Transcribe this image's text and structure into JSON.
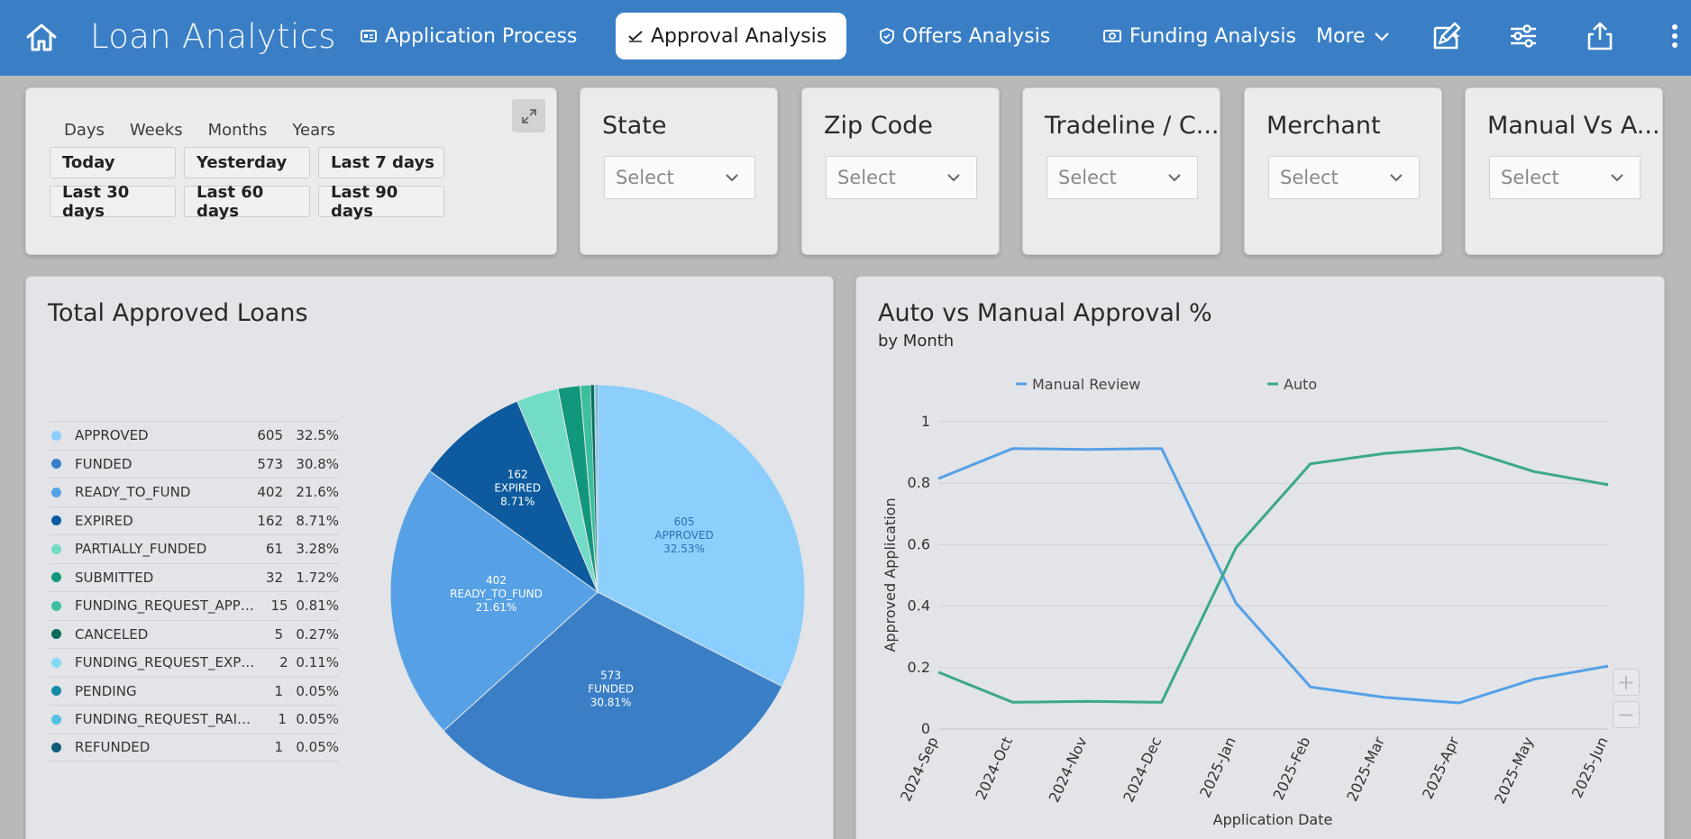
{
  "app": {
    "title": "Loan Analytics"
  },
  "nav": {
    "items": [
      {
        "label": "Application Process",
        "icon": "id-card-icon"
      },
      {
        "label": "Approval Analysis",
        "icon": "chart-check-icon",
        "active": true
      },
      {
        "label": "Offers Analysis",
        "icon": "shield-icon"
      },
      {
        "label": "Funding Analysis",
        "icon": "money-icon"
      }
    ],
    "more_label": "More"
  },
  "date_filter": {
    "tabs": [
      "Days",
      "Weeks",
      "Months",
      "Years"
    ],
    "presets": [
      "Today",
      "Yesterday",
      "Last 7 days",
      "Last 30 days",
      "Last 60 days",
      "Last 90 days"
    ]
  },
  "filters": [
    {
      "title": "State",
      "placeholder": "Select"
    },
    {
      "title": "Zip Code",
      "placeholder": "Select"
    },
    {
      "title": "Tradeline / C...",
      "placeholder": "Select"
    },
    {
      "title": "Merchant",
      "placeholder": "Select"
    },
    {
      "title": "Manual Vs A...",
      "placeholder": "Select"
    }
  ],
  "pie_panel": {
    "title": "Total Approved Loans",
    "legend": [
      {
        "name": "APPROVED",
        "count": "605",
        "pct": "32.5%",
        "color": "#8ccffc"
      },
      {
        "name": "FUNDED",
        "count": "573",
        "pct": "30.8%",
        "color": "#3a7fc6"
      },
      {
        "name": "READY_TO_FUND",
        "count": "402",
        "pct": "21.6%",
        "color": "#56a0e6"
      },
      {
        "name": "EXPIRED",
        "count": "162",
        "pct": "8.71%",
        "color": "#0d5b9e"
      },
      {
        "name": "PARTIALLY_FUNDED",
        "count": "61",
        "pct": "3.28%",
        "color": "#72dcc6"
      },
      {
        "name": "SUBMITTED",
        "count": "32",
        "pct": "1.72%",
        "color": "#10977c"
      },
      {
        "name": "FUNDING_REQUEST_APPRO...",
        "count": "15",
        "pct": "0.81%",
        "color": "#3cbf9f"
      },
      {
        "name": "CANCELED",
        "count": "5",
        "pct": "0.27%",
        "color": "#0b6b5c"
      },
      {
        "name": "FUNDING_REQUEST_EXPIRED",
        "count": "2",
        "pct": "0.11%",
        "color": "#86d8f7"
      },
      {
        "name": "PENDING",
        "count": "1",
        "pct": "0.05%",
        "color": "#138ba6"
      },
      {
        "name": "FUNDING_REQUEST_RAISED",
        "count": "1",
        "pct": "0.05%",
        "color": "#4fc1e6"
      },
      {
        "name": "REFUNDED",
        "count": "1",
        "pct": "0.05%",
        "color": "#0f5e78"
      }
    ]
  },
  "line_panel": {
    "title": "Auto vs Manual Approval %",
    "subtitle": "by Month"
  },
  "chart_data": [
    {
      "type": "pie",
      "title": "Total Approved Loans",
      "slices": [
        {
          "label": "APPROVED",
          "value": 605,
          "pct": "32.53%",
          "color": "#8ccffc",
          "text_color": "#2a6fb6",
          "show_label": true
        },
        {
          "label": "FUNDED",
          "value": 573,
          "pct": "30.81%",
          "color": "#3a7fc6",
          "text_color": "#ffffff",
          "show_label": true
        },
        {
          "label": "READY_TO_FUND",
          "value": 402,
          "pct": "21.61%",
          "color": "#56a0e6",
          "text_color": "#ffffff",
          "show_label": true
        },
        {
          "label": "EXPIRED",
          "value": 162,
          "pct": "8.71%",
          "color": "#0d5b9e",
          "text_color": "#ffffff",
          "show_label": true
        },
        {
          "label": "PARTIALLY_FUNDED",
          "value": 61,
          "color": "#72dcc6"
        },
        {
          "label": "SUBMITTED",
          "value": 32,
          "color": "#10977c"
        },
        {
          "label": "FUNDING_REQUEST_APPRO...",
          "value": 15,
          "color": "#3cbf9f"
        },
        {
          "label": "CANCELED",
          "value": 5,
          "color": "#0b6b5c"
        },
        {
          "label": "FUNDING_REQUEST_EXPIRED",
          "value": 2,
          "color": "#86d8f7"
        },
        {
          "label": "PENDING",
          "value": 1,
          "color": "#138ba6"
        },
        {
          "label": "FUNDING_REQUEST_RAISED",
          "value": 1,
          "color": "#4fc1e6"
        },
        {
          "label": "REFUNDED",
          "value": 1,
          "color": "#0f5e78"
        }
      ]
    },
    {
      "type": "line",
      "title": "Auto vs Manual Approval %",
      "subtitle": "by Month",
      "xlabel": "Application Date",
      "ylabel": "Approved Application",
      "ylim": [
        0,
        1
      ],
      "yticks": [
        "0",
        "0.2",
        "0.4",
        "0.6",
        "0.8",
        "1"
      ],
      "categories": [
        "2024-Sep",
        "2024-Oct",
        "2024-Nov",
        "2024-Dec",
        "2025-Jan",
        "2025-Feb",
        "2025-Mar",
        "2025-Apr",
        "2025-May",
        "2025-Jun"
      ],
      "series": [
        {
          "name": "Manual Review",
          "color": "#56a0e6",
          "values": [
            0.815,
            0.913,
            0.91,
            0.913,
            0.41,
            0.137,
            0.103,
            0.085,
            0.162,
            0.205
          ]
        },
        {
          "name": "Auto",
          "color": "#3ba889",
          "values": [
            0.185,
            0.087,
            0.09,
            0.087,
            0.59,
            0.863,
            0.897,
            0.915,
            0.838,
            0.795
          ]
        }
      ],
      "grid": true,
      "legend_position": "top"
    }
  ]
}
